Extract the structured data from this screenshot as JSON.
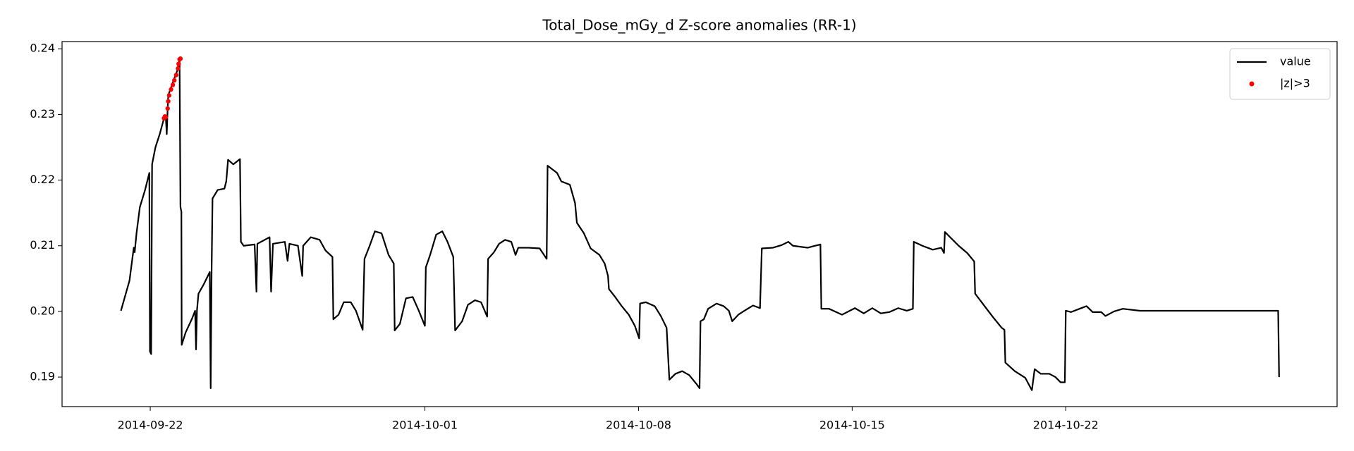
{
  "chart_data": {
    "type": "line",
    "title": "Total_Dose_mGy_d Z-score anomalies (RR-1)",
    "xlim": [
      16332.11,
      16373.89
    ],
    "ylim": [
      0.1855,
      0.2411
    ],
    "xticks": [
      {
        "value": 16335,
        "label": "2014-09-22"
      },
      {
        "value": 16344,
        "label": "2014-10-01"
      },
      {
        "value": 16351,
        "label": "2014-10-08"
      },
      {
        "value": 16358,
        "label": "2014-10-15"
      },
      {
        "value": 16365,
        "label": "2014-10-22"
      }
    ],
    "yticks": [
      0.19,
      {
        "value": 0.2,
        "label": "0.20"
      },
      0.21,
      0.22,
      0.23,
      0.24
    ],
    "legend": "upper right",
    "series": [
      {
        "name": "value",
        "type": "line",
        "color": "#000000",
        "x": [
          16334.04,
          16334.32,
          16334.46,
          16334.49,
          16334.55,
          16334.66,
          16334.83,
          16334.97,
          16334.99,
          16335.03,
          16335.06,
          16335.17,
          16335.31,
          16335.45,
          16335.51,
          16335.54,
          16335.57,
          16335.59,
          16335.74,
          16335.88,
          16335.96,
          16335.99,
          16336.02,
          16336.03,
          16336.16,
          16336.36,
          16336.47,
          16336.5,
          16336.53,
          16336.58,
          16336.75,
          16336.95,
          16336.98,
          16337.01,
          16337.04,
          16337.21,
          16337.43,
          16337.49,
          16337.55,
          16337.72,
          16337.94,
          16337.97,
          16338.06,
          16338.42,
          16338.48,
          16338.51,
          16338.91,
          16338.96,
          16339.02,
          16339.41,
          16339.5,
          16339.56,
          16339.84,
          16339.98,
          16340.01,
          16340.26,
          16340.55,
          16340.74,
          16340.97,
          16341.0,
          16341.17,
          16341.34,
          16341.57,
          16341.74,
          16341.96,
          16342.02,
          16342.19,
          16342.36,
          16342.58,
          16342.81,
          16342.98,
          16343.01,
          16343.18,
          16343.38,
          16343.6,
          16343.8,
          16344.0,
          16344.03,
          16344.17,
          16344.37,
          16344.57,
          16344.74,
          16344.93,
          16344.99,
          16345.22,
          16345.41,
          16345.64,
          16345.84,
          16346.04,
          16346.07,
          16346.26,
          16346.43,
          16346.63,
          16346.83,
          16346.97,
          16347.06,
          16347.4,
          16347.76,
          16347.99,
          16348.02,
          16348.33,
          16348.47,
          16348.75,
          16348.92,
          16348.98,
          16349.21,
          16349.43,
          16349.72,
          16349.89,
          16350.0,
          16350.03,
          16350.25,
          16350.45,
          16350.68,
          16350.88,
          16351.02,
          16351.05,
          16351.24,
          16351.53,
          16351.73,
          16351.92,
          16352.01,
          16352.21,
          16352.43,
          16352.66,
          16352.89,
          16353.0,
          16353.03,
          16353.14,
          16353.28,
          16353.56,
          16353.79,
          16353.96,
          16354.07,
          16354.27,
          16354.47,
          16354.75,
          16354.98,
          16355.04,
          16355.4,
          16355.69,
          16355.91,
          16356.06,
          16356.54,
          16356.79,
          16356.96,
          16356.99,
          16357.24,
          16357.67,
          16358.09,
          16358.38,
          16358.66,
          16358.94,
          16359.22,
          16359.51,
          16359.79,
          16359.99,
          16360.02,
          16360.3,
          16360.64,
          16360.92,
          16361.01,
          16361.04,
          16361.21,
          16361.49,
          16361.77,
          16362.0,
          16362.03,
          16362.34,
          16362.62,
          16362.9,
          16362.99,
          16363.02,
          16363.33,
          16363.67,
          16363.89,
          16363.98,
          16364.18,
          16364.46,
          16364.66,
          16364.83,
          16364.97,
          16365.0,
          16365.17,
          16365.45,
          16365.68,
          16365.88,
          16366.16,
          16366.3,
          16366.58,
          16366.87,
          16367.43,
          16371.96,
          16371.99
        ],
        "values": [
          0.2001,
          0.2047,
          0.2097,
          0.209,
          0.2119,
          0.2159,
          0.2185,
          0.2211,
          0.1939,
          0.1935,
          0.2224,
          0.225,
          0.227,
          0.2294,
          0.2296,
          0.227,
          0.2309,
          0.2329,
          0.2349,
          0.2366,
          0.2384,
          0.2159,
          0.2152,
          0.1949,
          0.1968,
          0.1988,
          0.2001,
          0.1942,
          0.2001,
          0.2027,
          0.2041,
          0.206,
          0.1883,
          0.206,
          0.2172,
          0.2185,
          0.2187,
          0.2198,
          0.2231,
          0.2224,
          0.2232,
          0.2106,
          0.21,
          0.2102,
          0.203,
          0.2103,
          0.2113,
          0.203,
          0.2103,
          0.2106,
          0.2077,
          0.2103,
          0.21,
          0.2054,
          0.21,
          0.2113,
          0.2109,
          0.2093,
          0.2083,
          0.1988,
          0.1995,
          0.2014,
          0.2014,
          0.2001,
          0.1972,
          0.208,
          0.21,
          0.2122,
          0.2119,
          0.2086,
          0.2073,
          0.1971,
          0.1981,
          0.202,
          0.2022,
          0.2001,
          0.1978,
          0.2067,
          0.2086,
          0.2117,
          0.2122,
          0.2106,
          0.2083,
          0.1971,
          0.1985,
          0.201,
          0.2017,
          0.2014,
          0.1992,
          0.208,
          0.209,
          0.2103,
          0.2109,
          0.2106,
          0.2086,
          0.2097,
          0.2097,
          0.2096,
          0.208,
          0.2222,
          0.2211,
          0.2198,
          0.2193,
          0.2165,
          0.2135,
          0.2119,
          0.2096,
          0.2086,
          0.2073,
          0.2054,
          0.2034,
          0.2021,
          0.2008,
          0.1995,
          0.1978,
          0.1959,
          0.2012,
          0.2014,
          0.2008,
          0.1993,
          0.1975,
          0.1896,
          0.1905,
          0.1909,
          0.1903,
          0.189,
          0.1883,
          0.1985,
          0.1988,
          0.2004,
          0.2012,
          0.2008,
          0.2001,
          0.1985,
          0.1995,
          0.2001,
          0.2009,
          0.2005,
          0.2096,
          0.2097,
          0.2101,
          0.2106,
          0.21,
          0.2097,
          0.21,
          0.2102,
          0.2004,
          0.2004,
          0.1995,
          0.2005,
          0.1997,
          0.2005,
          0.1997,
          0.1999,
          0.2005,
          0.2001,
          0.2004,
          0.2106,
          0.21,
          0.2094,
          0.2097,
          0.2089,
          0.2121,
          0.2113,
          0.21,
          0.2089,
          0.2076,
          0.2027,
          0.2008,
          0.1991,
          0.1975,
          0.1972,
          0.1922,
          0.1909,
          0.1899,
          0.188,
          0.1912,
          0.1905,
          0.1905,
          0.19,
          0.1892,
          0.1892,
          0.2001,
          0.1999,
          0.2004,
          0.2008,
          0.1999,
          0.1999,
          0.1993,
          0.2,
          0.2004,
          0.2001,
          0.2001,
          0.19
        ]
      },
      {
        "name": "|z|>3",
        "type": "scatter",
        "color": "#ff0000",
        "x": [
          16335.45,
          16335.48,
          16335.51,
          16335.57,
          16335.59,
          16335.62,
          16335.68,
          16335.74,
          16335.79,
          16335.85,
          16335.91,
          16335.93,
          16335.96,
          16335.99
        ],
        "values": [
          0.2294,
          0.2297,
          0.2296,
          0.2309,
          0.232,
          0.2329,
          0.2338,
          0.2345,
          0.2352,
          0.236,
          0.237,
          0.2377,
          0.2384,
          0.2385
        ]
      }
    ]
  }
}
